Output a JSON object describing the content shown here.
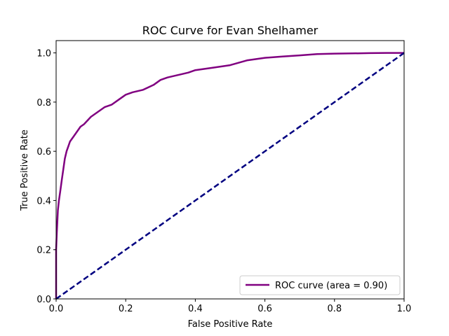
{
  "chart_data": {
    "type": "line",
    "title": "ROC Curve for Evan Shelhamer",
    "xlabel": "False Positive Rate",
    "ylabel": "True Positive Rate",
    "xlim": [
      0.0,
      1.0
    ],
    "ylim": [
      0.0,
      1.05
    ],
    "xticks": [
      "0.0",
      "0.2",
      "0.4",
      "0.6",
      "0.8",
      "1.0"
    ],
    "yticks": [
      "0.0",
      "0.2",
      "0.4",
      "0.6",
      "0.8",
      "1.0"
    ],
    "xtick_values": [
      0.0,
      0.2,
      0.4,
      0.6,
      0.8,
      1.0
    ],
    "ytick_values": [
      0.0,
      0.2,
      0.4,
      0.6,
      0.8,
      1.0
    ],
    "grid": false,
    "legend_position": "lower-right",
    "series": [
      {
        "name": "ROC curve (area = 0.90)",
        "color": "#800080",
        "style": "solid",
        "x": [
          0.0,
          0.0,
          0.002,
          0.005,
          0.008,
          0.012,
          0.016,
          0.02,
          0.025,
          0.03,
          0.035,
          0.04,
          0.05,
          0.06,
          0.07,
          0.08,
          0.1,
          0.12,
          0.14,
          0.16,
          0.18,
          0.2,
          0.22,
          0.25,
          0.28,
          0.3,
          0.32,
          0.35,
          0.38,
          0.4,
          0.45,
          0.5,
          0.55,
          0.6,
          0.65,
          0.7,
          0.75,
          0.8,
          0.85,
          0.9,
          0.95,
          1.0
        ],
        "y": [
          0.0,
          0.2,
          0.27,
          0.36,
          0.4,
          0.44,
          0.48,
          0.52,
          0.57,
          0.6,
          0.62,
          0.64,
          0.66,
          0.68,
          0.7,
          0.71,
          0.74,
          0.76,
          0.78,
          0.79,
          0.81,
          0.83,
          0.84,
          0.85,
          0.87,
          0.89,
          0.9,
          0.91,
          0.92,
          0.93,
          0.94,
          0.95,
          0.97,
          0.98,
          0.985,
          0.99,
          0.995,
          0.997,
          0.998,
          0.999,
          1.0,
          1.0
        ]
      },
      {
        "name": "",
        "color": "#000080",
        "style": "dashed",
        "x": [
          0.0,
          1.0
        ],
        "y": [
          0.0,
          1.0
        ]
      }
    ]
  }
}
